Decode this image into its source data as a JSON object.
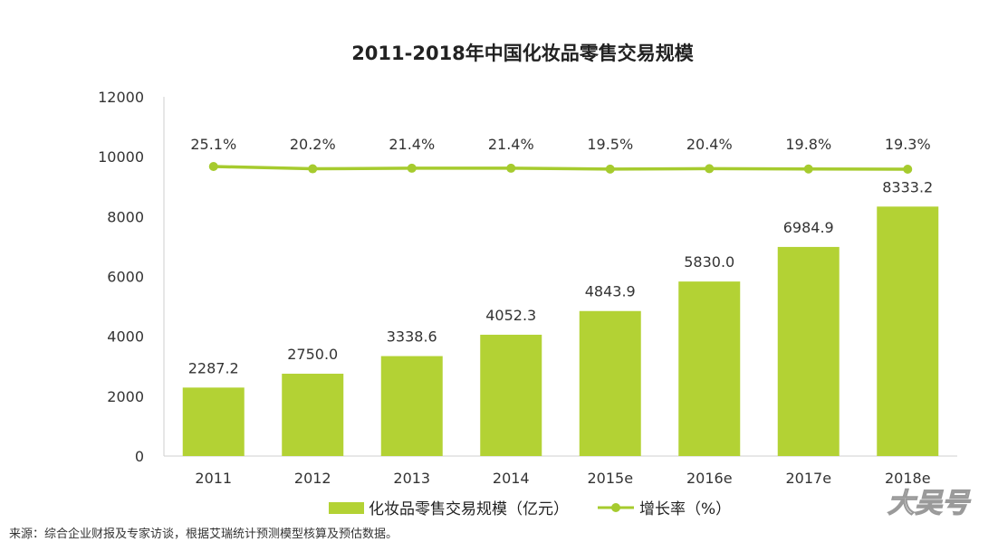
{
  "chart_data": {
    "type": "bar",
    "title": "2011-2018年中国化妆品零售交易规模",
    "categories": [
      "2011",
      "2012",
      "2013",
      "2014",
      "2015e",
      "2016e",
      "2017e",
      "2018e"
    ],
    "ylim": [
      0,
      12000
    ],
    "yticks": [
      "0",
      "2000",
      "4000",
      "6000",
      "8000",
      "10000",
      "12000"
    ],
    "series": [
      {
        "name": "化妆品零售交易规模（亿元）",
        "type": "bar",
        "values": [
          2287.2,
          2750.0,
          3338.6,
          4052.3,
          4843.9,
          5830.0,
          6984.9,
          8333.2
        ],
        "labels": [
          "2287.2",
          "2750.0",
          "3338.6",
          "4052.3",
          "4843.9",
          "5830.0",
          "6984.9",
          "8333.2"
        ]
      },
      {
        "name": "增长率（%）",
        "type": "line",
        "values": [
          25.1,
          20.2,
          21.4,
          21.4,
          19.5,
          20.4,
          19.8,
          19.3
        ],
        "labels": [
          "25.1%",
          "20.2%",
          "21.4%",
          "21.4%",
          "19.5%",
          "20.4%",
          "19.8%",
          "19.3%"
        ]
      }
    ],
    "colors": {
      "bar": "#b3d234",
      "line": "#a6cb2e"
    },
    "legend_position": "bottom",
    "grid": false
  },
  "source": "来源：综合企业财报及专家访谈，根据艾瑞统计预测模型核算及预估数据。",
  "watermark": "大吴号"
}
